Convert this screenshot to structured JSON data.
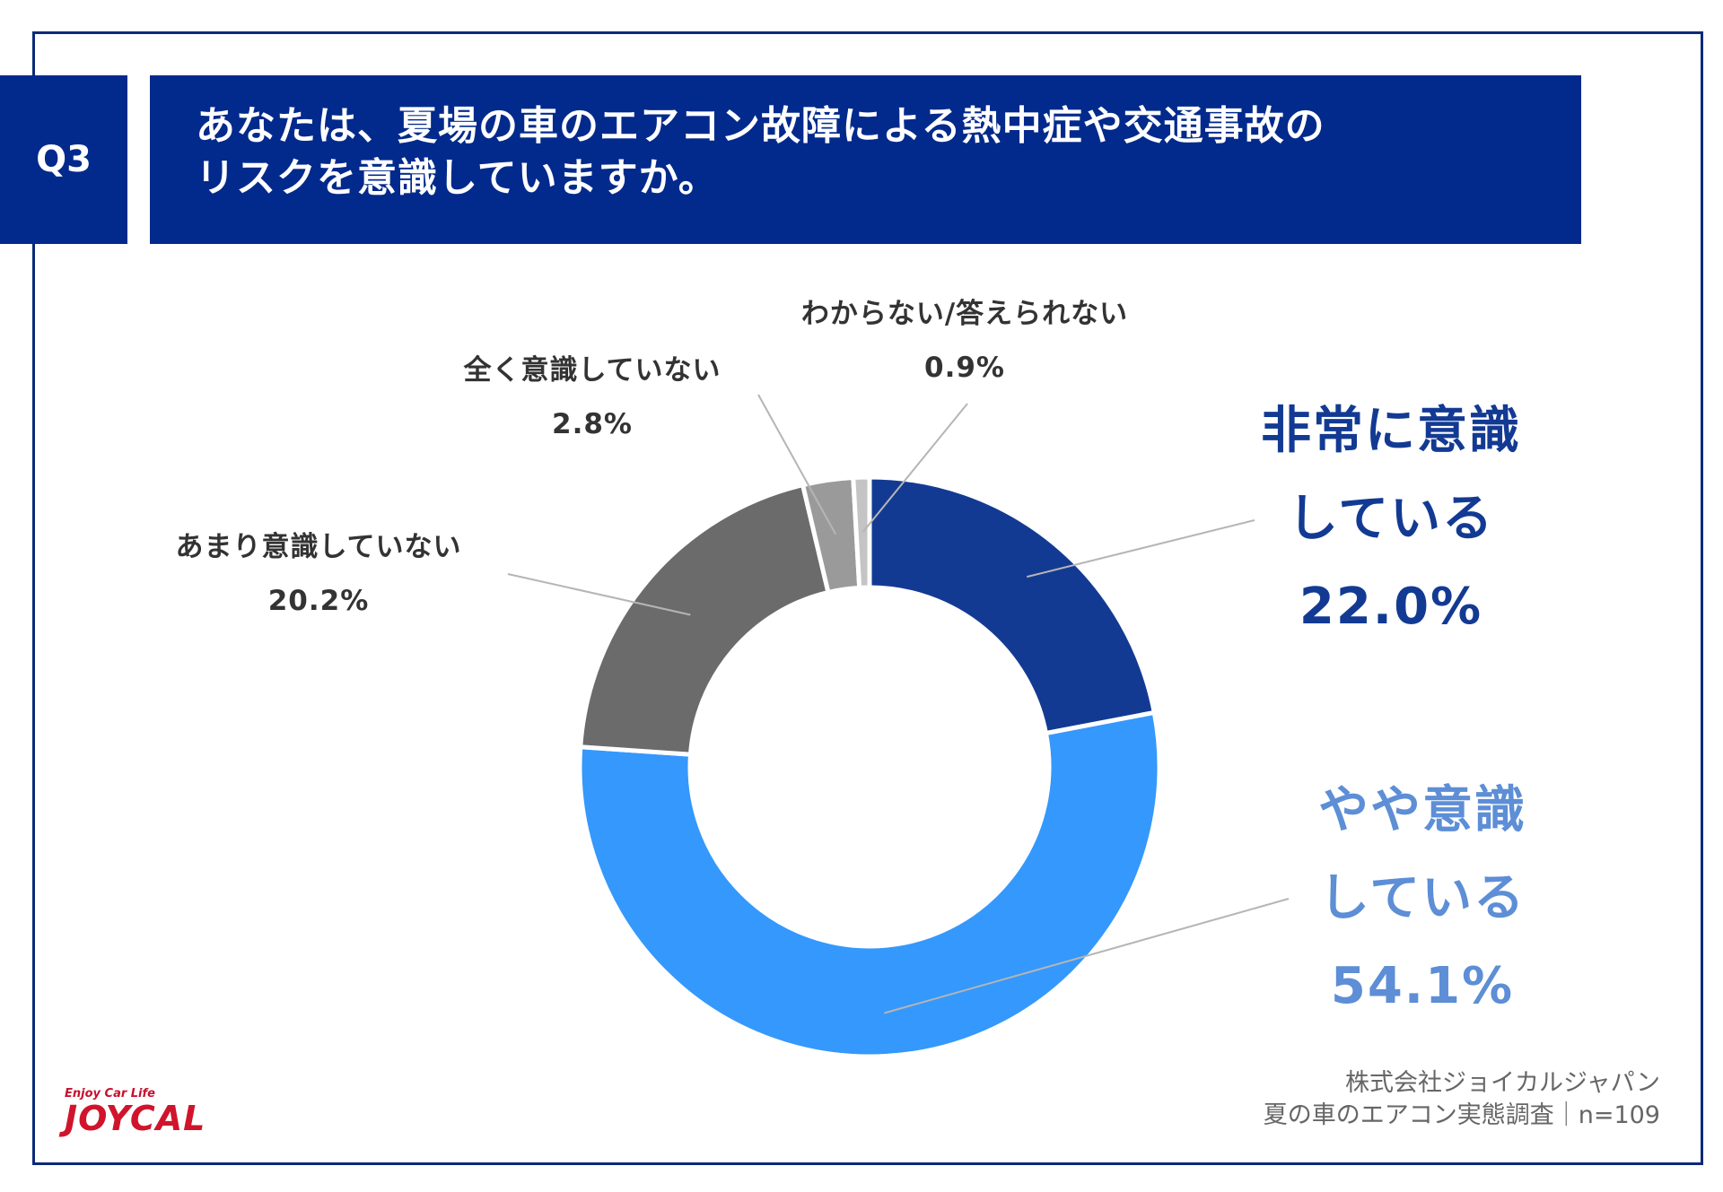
{
  "header": {
    "badge": "Q3",
    "title_line1": "あなたは、夏場の車のエアコン故障による熱中症や交通事故の",
    "title_line2": "リスクを意識していますか。"
  },
  "chart_data": {
    "type": "pie",
    "style": "donut",
    "title": "",
    "slices": [
      {
        "label_line1": "非常に意識",
        "label_line2": "している",
        "value_text": "22.0%",
        "value": 22.0,
        "color": "#133a93",
        "label_color": "#133a93"
      },
      {
        "label_line1": "やや意識",
        "label_line2": "している",
        "value_text": "54.1%",
        "value": 54.1,
        "color": "#3598fc",
        "label_color": "#5d8ed6"
      },
      {
        "label_line1": "あまり意識していない",
        "label_line2": "",
        "value_text": "20.2%",
        "value": 20.2,
        "color": "#6b6b6b",
        "label_color": "#333333"
      },
      {
        "label_line1": "全く意識していない",
        "label_line2": "",
        "value_text": "2.8%",
        "value": 2.8,
        "color": "#9a9a9a",
        "label_color": "#333333"
      },
      {
        "label_line1": "わからない/答えられない",
        "label_line2": "",
        "value_text": "0.9%",
        "value": 0.9,
        "color": "#c4c4c4",
        "label_color": "#333333"
      }
    ]
  },
  "source": {
    "line1": "株式会社ジョイカルジャパン",
    "line2": "夏の車のエアコン実態調査｜n=109"
  },
  "logo": {
    "tagline": "Enjoy Car Life",
    "brand": "JOYCAL"
  }
}
